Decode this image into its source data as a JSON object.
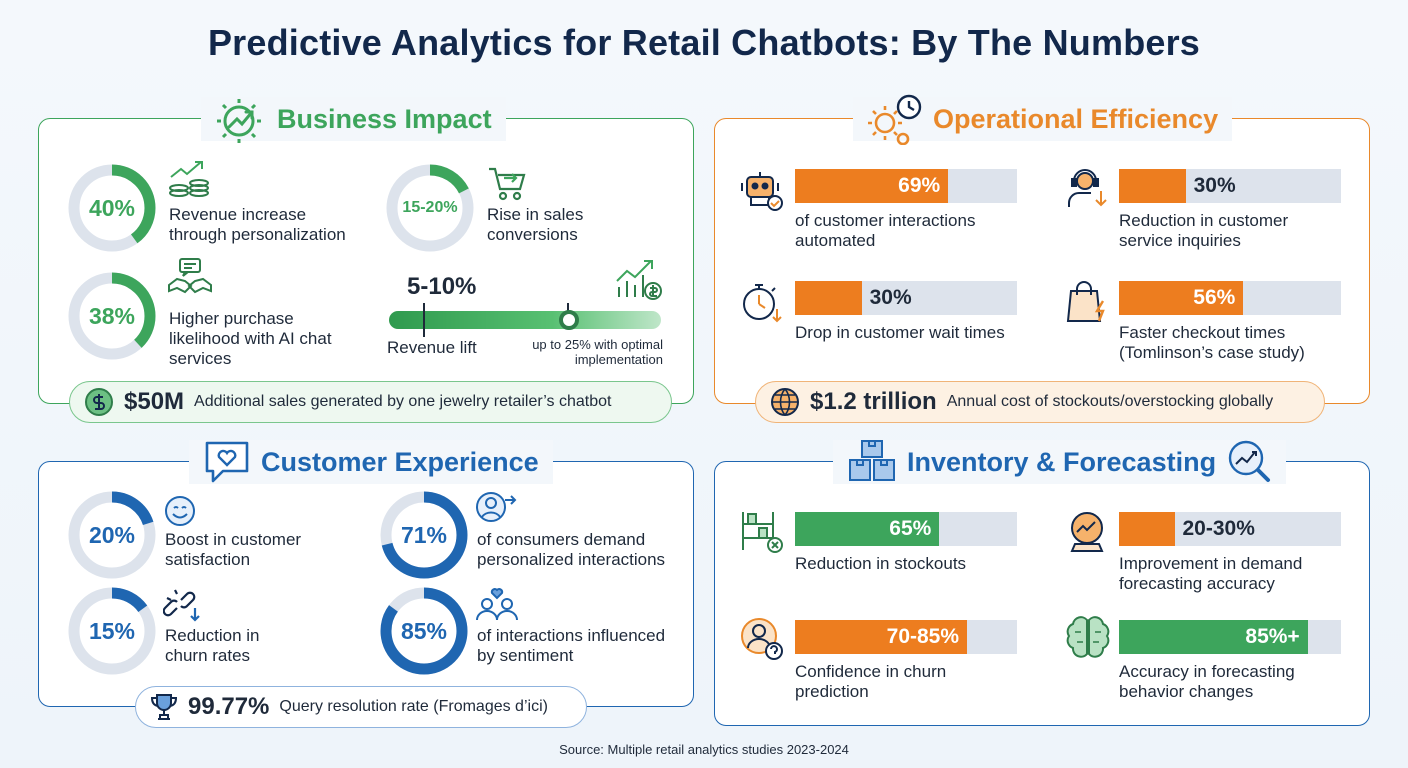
{
  "title": "Predictive Analytics for Retail Chatbots: By The Numbers",
  "colors": {
    "green": "#3da55c",
    "orange": "#ed7d1f",
    "blue": "#1f66b1",
    "track": "#dde3ec",
    "navy": "#12284b"
  },
  "business": {
    "heading": "Business Impact",
    "m1": {
      "value": "40%",
      "label1": "Revenue increase",
      "label2": "through personalization",
      "pct": 0.4,
      "icon": "money-growth-icon"
    },
    "m2": {
      "value": "15-20%",
      "label1": "Rise in sales",
      "label2": "conversions",
      "pct": 0.175,
      "icon": "cart-icon"
    },
    "m3": {
      "value": "38%",
      "label1": "Higher purchase",
      "label2": "likelihood with AI chat",
      "label3": "services",
      "pct": 0.38,
      "icon": "handshake-chat-icon"
    },
    "lift": {
      "value": "5-10%",
      "label": "Revenue lift",
      "note1": "up to 25% with optimal",
      "note2": "implementation"
    },
    "pill": {
      "big": "$50M",
      "text": "Additional sales generated by one jewelry retailer’s chatbot"
    }
  },
  "ops": {
    "heading": "Operational Efficiency",
    "m1": {
      "value": "69%",
      "pct": 0.69,
      "label1": "of customer interactions",
      "label2": "automated",
      "icon": "robot-icon"
    },
    "m2": {
      "value": "30%",
      "pct": 0.3,
      "label1": "Reduction in customer",
      "label2": "service inquiries",
      "icon": "headset-agent-icon"
    },
    "m3": {
      "value": "30%",
      "pct": 0.3,
      "label1": "Drop in customer wait times",
      "icon": "stopwatch-icon"
    },
    "m4": {
      "value": "56%",
      "pct": 0.56,
      "label1": "Faster checkout times",
      "label2": "(Tomlinson’s case study)",
      "icon": "shopping-bag-icon"
    },
    "pill": {
      "big": "$1.2 trillion",
      "text": "Annual cost of stockouts/overstocking globally"
    }
  },
  "cx": {
    "heading": "Customer Experience",
    "m1": {
      "value": "20%",
      "pct": 0.2,
      "label1": "Boost in customer",
      "label2": "satisfaction",
      "icon": "smiley-icon"
    },
    "m2": {
      "value": "71%",
      "pct": 0.71,
      "label1": "of consumers demand",
      "label2": "personalized interactions",
      "icon": "user-arrow-icon"
    },
    "m3": {
      "value": "15%",
      "pct": 0.15,
      "label1": "Reduction in",
      "label2": "churn rates",
      "icon": "broken-link-icon"
    },
    "m4": {
      "value": "85%",
      "pct": 0.85,
      "label1": "of interactions influenced",
      "label2": "by sentiment",
      "icon": "people-heart-icon"
    },
    "pill": {
      "big": "99.77%",
      "text": "Query resolution rate (Fromages d’ici)"
    }
  },
  "inv": {
    "heading": "Inventory & Forecasting",
    "m1": {
      "value": "65%",
      "pct": 0.65,
      "label1": "Reduction in stockouts",
      "icon": "shelf-icon"
    },
    "m2": {
      "value": "20-30%",
      "pct": 0.25,
      "label1": "Improvement in demand",
      "label2": "forecasting accuracy",
      "icon": "crystal-ball-icon"
    },
    "m3": {
      "value": "70-85%",
      "pct": 0.775,
      "label1": "Confidence in churn",
      "label2": "prediction",
      "icon": "user-question-icon"
    },
    "m4": {
      "value": "85%+",
      "pct": 0.85,
      "label1": "Accuracy in forecasting",
      "label2": "behavior changes",
      "icon": "brain-icon"
    }
  },
  "source": "Source: Multiple retail analytics studies 2023-2024",
  "chart_data": [
    {
      "type": "donut",
      "group": "Business Impact",
      "items": [
        {
          "label": "Revenue increase through personalization",
          "value": 40
        },
        {
          "label": "Rise in sales conversions",
          "value": "15-20"
        },
        {
          "label": "Higher purchase likelihood with AI chat services",
          "value": 38
        }
      ]
    },
    {
      "type": "bar",
      "group": "Operational Efficiency",
      "items": [
        {
          "label": "of customer interactions automated",
          "value": 69
        },
        {
          "label": "Reduction in customer service inquiries",
          "value": 30
        },
        {
          "label": "Drop in customer wait times",
          "value": 30
        },
        {
          "label": "Faster checkout times (Tomlinson’s case study)",
          "value": 56
        }
      ]
    },
    {
      "type": "donut",
      "group": "Customer Experience",
      "items": [
        {
          "label": "Boost in customer satisfaction",
          "value": 20
        },
        {
          "label": "of consumers demand personalized interactions",
          "value": 71
        },
        {
          "label": "Reduction in churn rates",
          "value": 15
        },
        {
          "label": "of interactions influenced by sentiment",
          "value": 85
        }
      ]
    },
    {
      "type": "bar",
      "group": "Inventory & Forecasting",
      "items": [
        {
          "label": "Reduction in stockouts",
          "value": 65
        },
        {
          "label": "Improvement in demand forecasting accuracy",
          "value": "20-30"
        },
        {
          "label": "Confidence in churn prediction",
          "value": "70-85"
        },
        {
          "label": "Accuracy in forecasting behavior changes",
          "value": "85+"
        }
      ]
    }
  ]
}
